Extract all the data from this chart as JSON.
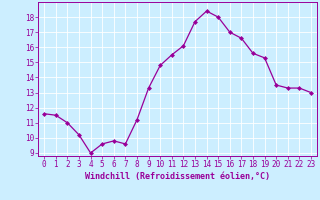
{
  "x": [
    0,
    1,
    2,
    3,
    4,
    5,
    6,
    7,
    8,
    9,
    10,
    11,
    12,
    13,
    14,
    15,
    16,
    17,
    18,
    19,
    20,
    21,
    22,
    23
  ],
  "y": [
    11.6,
    11.5,
    11.0,
    10.2,
    9.0,
    9.6,
    9.8,
    9.6,
    11.2,
    13.3,
    14.8,
    15.5,
    16.1,
    17.7,
    18.4,
    18.0,
    17.0,
    16.6,
    15.6,
    15.3,
    13.5,
    13.3,
    13.3,
    13.0
  ],
  "line_color": "#990099",
  "marker": "D",
  "marker_size": 2.0,
  "bg_color": "#cceeff",
  "grid_color": "#ffffff",
  "xlabel": "Windchill (Refroidissement éolien,°C)",
  "xlabel_color": "#990099",
  "tick_color": "#990099",
  "ylim": [
    8.8,
    19.0
  ],
  "xlim": [
    -0.5,
    23.5
  ],
  "yticks": [
    9,
    10,
    11,
    12,
    13,
    14,
    15,
    16,
    17,
    18
  ],
  "xticks": [
    0,
    1,
    2,
    3,
    4,
    5,
    6,
    7,
    8,
    9,
    10,
    11,
    12,
    13,
    14,
    15,
    16,
    17,
    18,
    19,
    20,
    21,
    22,
    23
  ],
  "tick_label_fontsize": 5.5,
  "xlabel_fontsize": 6.0,
  "linewidth": 0.9
}
